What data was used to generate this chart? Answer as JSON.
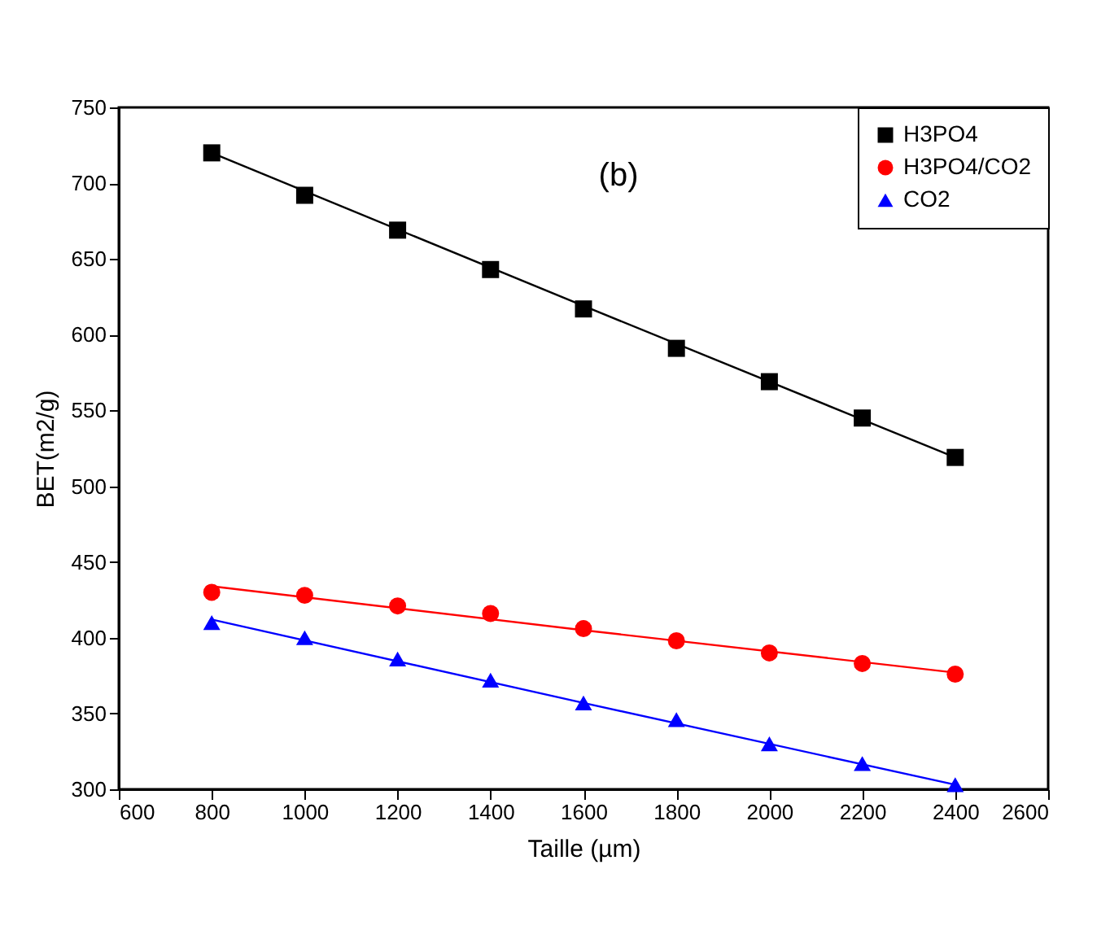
{
  "chart_data": {
    "type": "scatter",
    "xlabel": "Taille (µm)",
    "ylabel": "BET(m2/g)",
    "annotations": [
      "(b)"
    ],
    "x": [
      800,
      1000,
      1200,
      1400,
      1600,
      1800,
      2000,
      2200,
      2400
    ],
    "xlim": [
      600,
      2600
    ],
    "xticks": [
      600,
      800,
      1000,
      1200,
      1400,
      1600,
      1800,
      2000,
      2200,
      2400,
      2600
    ],
    "ylim": [
      300,
      750
    ],
    "yticks": [
      300,
      350,
      400,
      450,
      500,
      550,
      600,
      650,
      700,
      750
    ],
    "grid": false,
    "legend": "top right",
    "series": [
      {
        "name": "H3PO4",
        "marker": "square",
        "color": "#000000",
        "values": [
          720,
          692,
          669,
          643,
          617,
          591,
          569,
          545,
          519
        ]
      },
      {
        "name": "H3PO4/CO2",
        "marker": "circle",
        "color": "#ff0000",
        "values": [
          430,
          428,
          421,
          416,
          406,
          398,
          390,
          383,
          376
        ]
      },
      {
        "name": "CO2",
        "marker": "triangle",
        "color": "#0000ff",
        "values": [
          410,
          400,
          386,
          372,
          357,
          346,
          330,
          317,
          303
        ]
      },
      {
        "type": "line",
        "color": "#000000",
        "x": [
          800,
          1600,
          2400
        ],
        "values": [
          720,
          619,
          519
        ]
      },
      {
        "type": "line",
        "color": "#ff0000",
        "x": [
          800,
          1600,
          2400
        ],
        "values": [
          434,
          405,
          377
        ]
      },
      {
        "type": "line",
        "color": "#0000ff",
        "x": [
          800,
          1600,
          2400
        ],
        "values": [
          412,
          357,
          303
        ]
      }
    ]
  }
}
